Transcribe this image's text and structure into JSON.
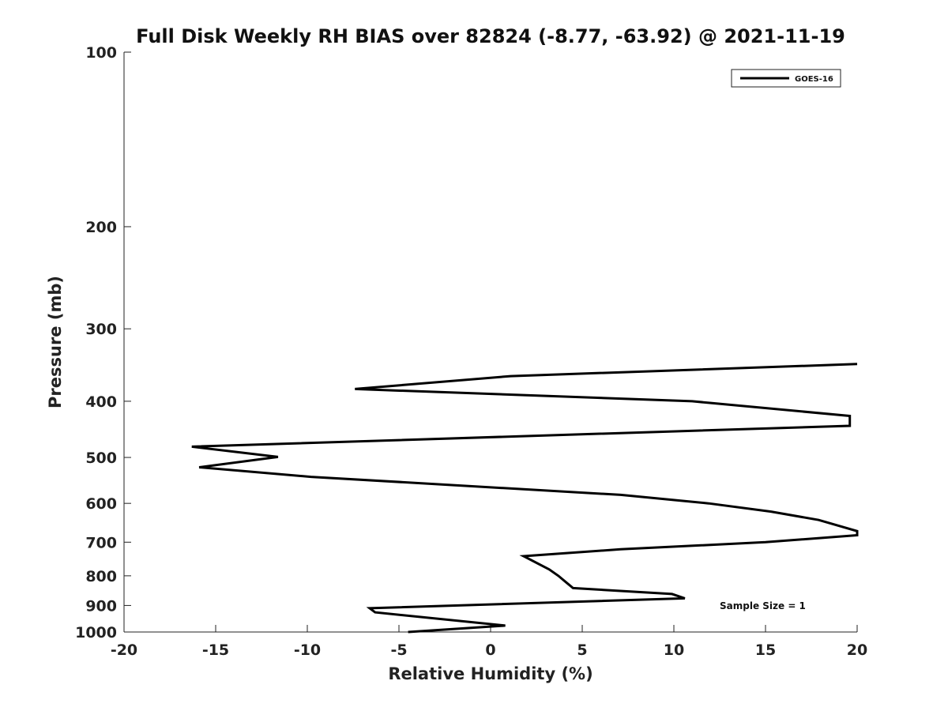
{
  "chart_data": {
    "type": "line",
    "title": "Full Disk Weekly RH BIAS over 82824 (-8.77, -63.92) @ 2021-11-19",
    "xlabel": "Relative Humidity (%)",
    "ylabel": "Pressure (mb)",
    "xlim": [
      -20,
      20
    ],
    "ylim": [
      100,
      1000
    ],
    "y_scale": "log",
    "y_inverted": true,
    "x_ticks": [
      -20,
      -15,
      -10,
      -5,
      0,
      5,
      10,
      15,
      20
    ],
    "y_ticks": [
      100,
      200,
      300,
      400,
      500,
      600,
      700,
      800,
      900,
      1000
    ],
    "grid": false,
    "legend_position": "top-right",
    "annotation": "Sample Size = 1",
    "series": [
      {
        "name": "GOES-16",
        "color": "#000000",
        "points": [
          [
            20,
            345
          ],
          [
            1.1,
            362
          ],
          [
            -7.4,
            381
          ],
          [
            11,
            400
          ],
          [
            19.6,
            424
          ],
          [
            19.6,
            441
          ],
          [
            -16.3,
            479
          ],
          [
            -11.6,
            499
          ],
          [
            -15.9,
            520
          ],
          [
            -9.8,
            540
          ],
          [
            7.1,
            580
          ],
          [
            11.9,
            600
          ],
          [
            15.3,
            620
          ],
          [
            17.9,
            641
          ],
          [
            20,
            670
          ],
          [
            20,
            681
          ],
          [
            15,
            700
          ],
          [
            7.1,
            720
          ],
          [
            1.8,
            740
          ],
          [
            3.2,
            780
          ],
          [
            3.7,
            800
          ],
          [
            4.1,
            820
          ],
          [
            4.5,
            840
          ],
          [
            9.9,
            860
          ],
          [
            10.6,
            875
          ],
          [
            -6.6,
            910
          ],
          [
            -6.3,
            925
          ],
          [
            0.8,
            975
          ],
          [
            -4.5,
            1000
          ]
        ]
      }
    ]
  }
}
